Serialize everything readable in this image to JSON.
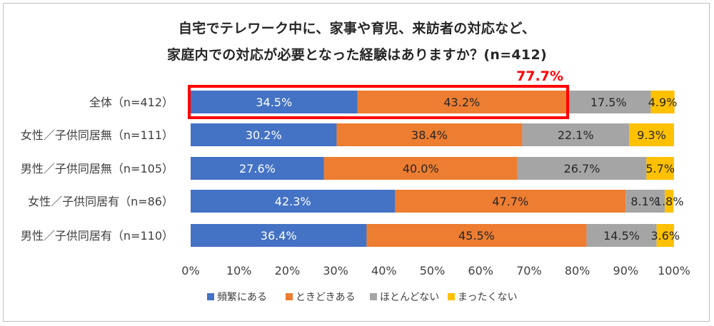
{
  "chart_data": {
    "type": "bar",
    "orientation": "horizontal",
    "stacked": true,
    "title_line1": "自宅でテレワーク中に、家事や育児、来訪者の対応など、",
    "title_line2": "家庭内での対応が必要となった経験はありますか？(n=412)",
    "categories": [
      "全体（n=412）",
      "女性／子供同居無（n=111）",
      "男性／子供同居無（n=105）",
      "女性／子供同居有（n=86）",
      "男性／子供同居有（n=110）"
    ],
    "series": [
      {
        "name": "頻繁にある",
        "color": "#4472c4",
        "text_color": "#ffffff",
        "values": [
          34.5,
          30.2,
          27.6,
          42.3,
          36.4
        ],
        "labels": [
          "34.5%",
          "30.2%",
          "27.6%",
          "42.3%",
          "36.4%"
        ]
      },
      {
        "name": "ときどきある",
        "color": "#ed7d31",
        "text_color": "#262626",
        "values": [
          43.2,
          38.4,
          40.0,
          47.7,
          45.5
        ],
        "labels": [
          "43.2%",
          "38.4%",
          "40.0%",
          "47.7%",
          "45.5%"
        ]
      },
      {
        "name": "ほとんどない",
        "color": "#a5a5a5",
        "text_color": "#262626",
        "values": [
          17.5,
          22.1,
          26.7,
          8.1,
          14.5
        ],
        "labels": [
          "17.5%",
          "22.1%",
          "26.7%",
          "8.1%",
          "14.5%"
        ]
      },
      {
        "name": "まったくない",
        "color": "#ffc000",
        "text_color": "#262626",
        "values": [
          4.9,
          9.3,
          5.7,
          1.8,
          3.6
        ],
        "labels": [
          "4.9%",
          "9.3%",
          "5.7%",
          "1.8%",
          "3.6%"
        ]
      }
    ],
    "xlim": [
      0,
      100
    ],
    "x_ticks": [
      "0%",
      "10%",
      "20%",
      "30%",
      "40%",
      "50%",
      "60%",
      "70%",
      "80%",
      "90%",
      "100%"
    ],
    "highlight": {
      "category_index": 0,
      "value": 77.7,
      "label": "77.7%",
      "color": "#ff0000"
    },
    "legend_position": "bottom",
    "grid": false
  }
}
